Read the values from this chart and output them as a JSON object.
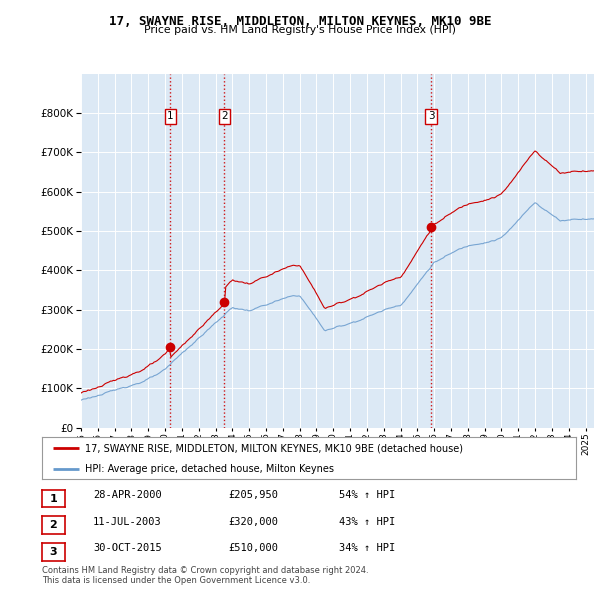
{
  "title": "17, SWAYNE RISE, MIDDLETON, MILTON KEYNES, MK10 9BE",
  "subtitle": "Price paid vs. HM Land Registry's House Price Index (HPI)",
  "xlim_start": 1995.0,
  "xlim_end": 2025.5,
  "ylim": [
    0,
    900000
  ],
  "background_color": "#ffffff",
  "plot_bg_color": "#dce9f5",
  "grid_color": "#ffffff",
  "sale_color": "#cc0000",
  "hpi_color": "#6699cc",
  "sale_points": [
    [
      2000.32,
      205950
    ],
    [
      2003.53,
      320000
    ],
    [
      2015.83,
      510000
    ]
  ],
  "sale_labels": [
    "1",
    "2",
    "3"
  ],
  "vline_color": "#cc0000",
  "legend_sale": "17, SWAYNE RISE, MIDDLETON, MILTON KEYNES, MK10 9BE (detached house)",
  "legend_hpi": "HPI: Average price, detached house, Milton Keynes",
  "table_rows": [
    [
      "1",
      "28-APR-2000",
      "£205,950",
      "54% ↑ HPI"
    ],
    [
      "2",
      "11-JUL-2003",
      "£320,000",
      "43% ↑ HPI"
    ],
    [
      "3",
      "30-OCT-2015",
      "£510,000",
      "34% ↑ HPI"
    ]
  ],
  "footer": "Contains HM Land Registry data © Crown copyright and database right 2024.\nThis data is licensed under the Open Government Licence v3.0.",
  "yticks": [
    0,
    100000,
    200000,
    300000,
    400000,
    500000,
    600000,
    700000,
    800000
  ]
}
